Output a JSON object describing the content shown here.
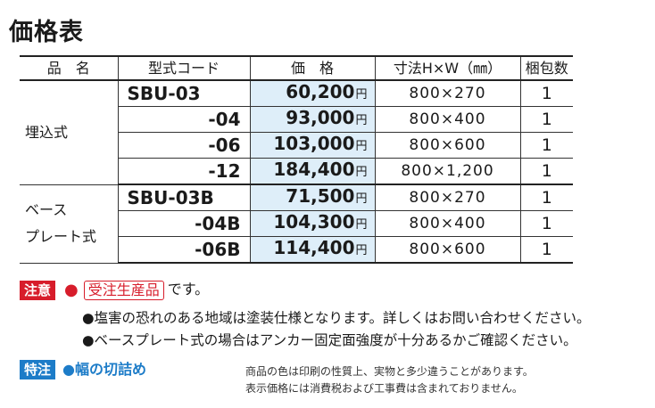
{
  "title": "価格表",
  "table": {
    "headers": [
      "品　名",
      "型式コード",
      "価　格",
      "寸法H×W（㎜）",
      "梱包数"
    ],
    "yen": "円",
    "groups": [
      {
        "name": "埋込式",
        "rows": [
          {
            "model": "SBU-03",
            "price": "60,200",
            "size": "800×270",
            "pack": "1"
          },
          {
            "model": "-04",
            "price": "93,000",
            "size": "800×400",
            "pack": "1"
          },
          {
            "model": "-06",
            "price": "103,000",
            "size": "800×600",
            "pack": "1"
          },
          {
            "model": "-12",
            "price": "184,400",
            "size": "800×1,200",
            "pack": "1"
          }
        ]
      },
      {
        "name_line1": "ベース",
        "name_line2": "プレート式",
        "rows": [
          {
            "model": "SBU-03B",
            "price": "71,500",
            "size": "800×270",
            "pack": "1"
          },
          {
            "model": "-04B",
            "price": "104,300",
            "size": "800×400",
            "pack": "1"
          },
          {
            "model": "-06B",
            "price": "114,400",
            "size": "800×600",
            "pack": "1"
          }
        ]
      }
    ]
  },
  "notes": {
    "caution_label": "注意",
    "order_label": "受注生産品",
    "order_suffix": "です。",
    "bullets": [
      "●塩害の恐れのある地域は塗装仕様となります。詳しくはお問い合わせください。",
      "●ベースプレート式の場合はアンカー固定面強度が十分あるかご確認ください。"
    ],
    "special_label": "特注",
    "special_item": "●幅の切詰め",
    "fine_print": [
      "商品の色は印刷の性質上、実物と多少違うことがあります。",
      "表示価格には消費税および工事費は含まれておりません。"
    ]
  },
  "colors": {
    "accent_red": "#d71d2b",
    "accent_blue": "#1d7cc8",
    "price_bg": "#deeef9"
  }
}
